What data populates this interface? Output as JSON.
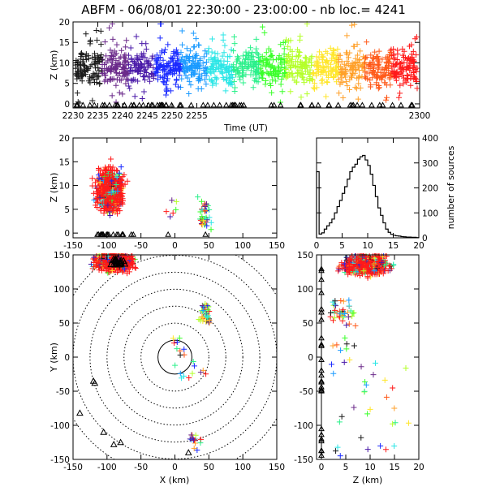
{
  "figure": {
    "title": "ABFM - 06/08/01 22:30:00 - 23:00:00 - nb loc.=    4241"
  },
  "chart_data": [
    {
      "id": "time_height",
      "type": "scatter",
      "xlabel": "Time (UT)",
      "ylabel": "Z (km)",
      "xticks": [
        "2230",
        "2235",
        "2240",
        "2245",
        "2250",
        "2255",
        "2300"
      ],
      "xlim": [
        2230,
        2300
      ],
      "yticks": [
        "0",
        "5",
        "10",
        "15",
        "20"
      ],
      "ylim": [
        -1,
        20
      ],
      "color_by": "time",
      "band_center_km": 9,
      "band_spread_km": 3,
      "outlier_range_km": [
        0,
        20
      ],
      "station_marker": "triangle",
      "station_z_km": -0.3
    },
    {
      "id": "x_height",
      "type": "scatter",
      "xlabel": "",
      "ylabel": "Z (km)",
      "xticks": [
        "-150",
        "-100",
        "-50",
        "0",
        "50",
        "100",
        "150"
      ],
      "xlim": [
        -150,
        150
      ],
      "yticks": [
        "0",
        "5",
        "10",
        "15",
        "20"
      ],
      "ylim": [
        -1,
        20
      ],
      "clusters": [
        {
          "x": -95,
          "z": 9,
          "sx": 13,
          "sz": 3,
          "count": 800
        },
        {
          "x": -5,
          "z": 5,
          "sx": 5,
          "sz": 2,
          "count": 6
        },
        {
          "x": 45,
          "z": 4,
          "sx": 6,
          "sz": 2.5,
          "count": 40
        }
      ]
    },
    {
      "id": "height_histogram",
      "type": "line",
      "xlabel": "",
      "ylabel": "number of sources",
      "x": [
        0,
        0.5,
        1,
        1.5,
        2,
        2.5,
        3,
        3.5,
        4,
        4.5,
        5,
        5.5,
        6,
        6.5,
        7,
        7.5,
        8,
        8.5,
        9,
        9.5,
        10,
        10.5,
        11,
        11.5,
        12,
        12.5,
        13,
        13.5,
        14,
        14.5,
        15,
        15.5,
        16,
        16.5,
        17,
        17.5,
        18,
        18.5,
        19,
        19.5,
        20
      ],
      "values": [
        265,
        15,
        20,
        35,
        48,
        60,
        75,
        100,
        125,
        150,
        178,
        205,
        235,
        265,
        283,
        295,
        315,
        325,
        330,
        312,
        290,
        255,
        210,
        165,
        120,
        90,
        60,
        35,
        22,
        14,
        10,
        8,
        7,
        5,
        4,
        3,
        3,
        2,
        2,
        1,
        0
      ],
      "xticks": [
        "0",
        "5",
        "10",
        "15",
        "20"
      ],
      "xlim": [
        0,
        20
      ],
      "yticks": [
        "0",
        "100",
        "200",
        "300",
        "400"
      ],
      "ylim": [
        0,
        400
      ]
    },
    {
      "id": "plan_view",
      "type": "scatter",
      "xlabel": "X (km)",
      "ylabel": "Y (km)",
      "xticks": [
        "-150",
        "-100",
        "-50",
        "0",
        "50",
        "100",
        "150"
      ],
      "xlim": [
        -150,
        150
      ],
      "yticks": [
        "-150",
        "-100",
        "-50",
        "0",
        "50",
        "100",
        "150"
      ],
      "ylim": [
        -150,
        150
      ],
      "range_rings_km": [
        25,
        50,
        75,
        100,
        125,
        150,
        175
      ],
      "clusters": [
        {
          "x": -90,
          "y": 140,
          "sx": 18,
          "sy": 9,
          "count": 700
        },
        {
          "x": 45,
          "y": 65,
          "sx": 6,
          "sy": 14,
          "count": 40
        },
        {
          "x": 5,
          "y": 15,
          "sx": 8,
          "sy": 15,
          "count": 10
        },
        {
          "x": 25,
          "y": -20,
          "sx": 15,
          "sy": 15,
          "count": 10
        },
        {
          "x": 30,
          "y": -120,
          "sx": 12,
          "sy": 10,
          "count": 15
        }
      ]
    },
    {
      "id": "height_y",
      "type": "scatter",
      "xlabel": "Z (km)",
      "ylabel": "",
      "xticks": [
        "0",
        "5",
        "10",
        "15",
        "20"
      ],
      "xlim": [
        -1,
        20
      ],
      "yticks": [
        "-150",
        "-100",
        "-50",
        "0",
        "50",
        "100",
        "150"
      ],
      "ylim": [
        -150,
        150
      ]
    }
  ],
  "palette": {
    "sequence": [
      "#1a1a1a",
      "#6b2a8a",
      "#4a1aa8",
      "#1a2aff",
      "#1a9aff",
      "#2ae6e6",
      "#2af08a",
      "#3aff2a",
      "#b4ff2a",
      "#ffe62a",
      "#ffa02a",
      "#ff5a1a",
      "#ff1a1a"
    ],
    "storm": "#ff1a1a",
    "station": "#000000"
  }
}
